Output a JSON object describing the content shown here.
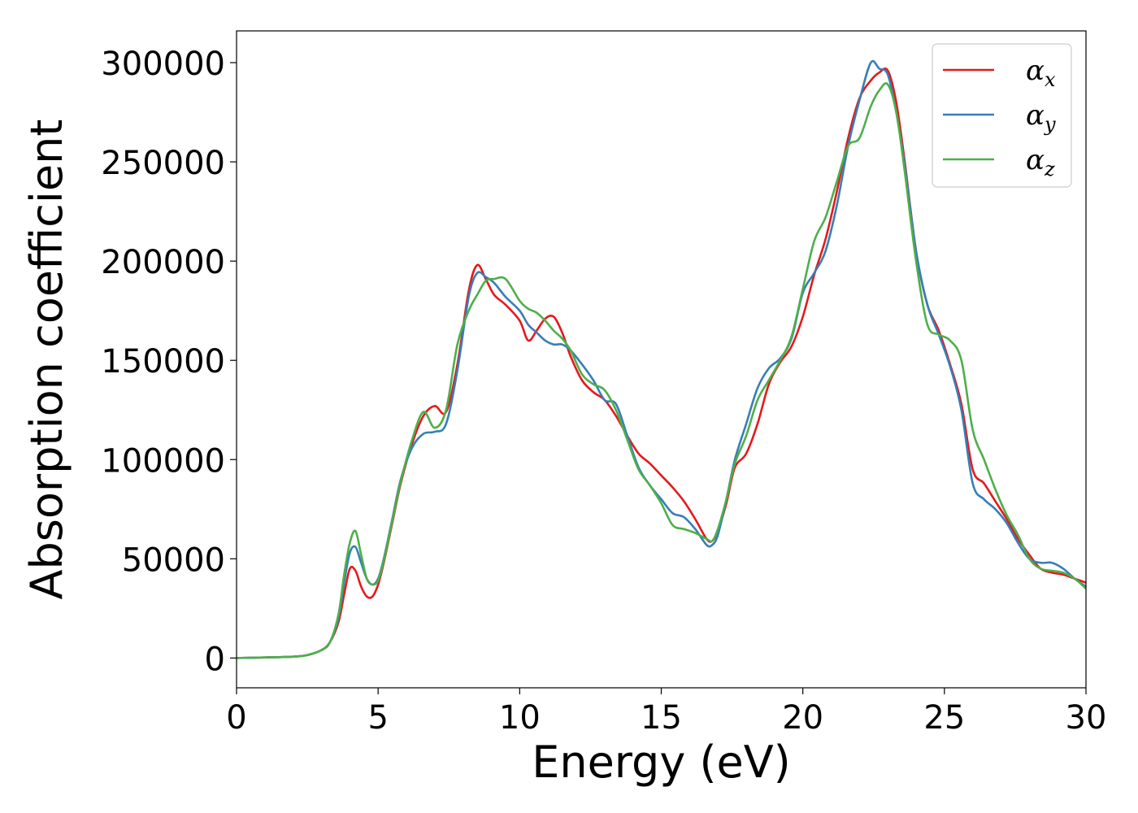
{
  "chart_data": {
    "type": "line",
    "title": "",
    "xlabel": "Energy (eV)",
    "ylabel": "Absorption coefficient",
    "xlim": [
      0,
      30
    ],
    "ylim": [
      -15000,
      316000
    ],
    "xticks": [
      0,
      5,
      10,
      15,
      20,
      25,
      30
    ],
    "yticks": [
      0,
      50000,
      100000,
      150000,
      200000,
      250000,
      300000
    ],
    "grid": false,
    "legend_position": "top-right",
    "series": [
      {
        "name": "α",
        "subscript": "x",
        "color": "#e41a1c",
        "x": [
          0,
          1,
          2,
          2.5,
          3,
          3.3,
          3.6,
          3.8,
          4.0,
          4.2,
          4.4,
          4.6,
          4.8,
          5.0,
          5.2,
          5.5,
          5.8,
          6.2,
          6.6,
          7.0,
          7.4,
          7.8,
          8.2,
          8.5,
          8.8,
          9.1,
          9.5,
          10.0,
          10.3,
          10.6,
          10.9,
          11.2,
          11.5,
          11.8,
          12.2,
          12.6,
          13.0,
          13.4,
          13.8,
          14.2,
          14.6,
          15.0,
          15.4,
          15.8,
          16.2,
          16.6,
          16.8,
          17.0,
          17.3,
          17.6,
          18.0,
          18.4,
          18.8,
          19.2,
          19.6,
          20.0,
          20.4,
          20.8,
          21.2,
          21.6,
          22.0,
          22.4,
          22.7,
          23.0,
          23.3,
          23.6,
          24.0,
          24.4,
          24.8,
          25.2,
          25.6,
          26.0,
          26.4,
          26.8,
          27.2,
          27.6,
          28.0,
          28.4,
          28.8,
          29.2,
          29.6,
          30.0
        ],
        "y": [
          0,
          300,
          700,
          1500,
          4000,
          8000,
          18000,
          32000,
          45000,
          44000,
          36000,
          31000,
          31000,
          37000,
          48000,
          68000,
          88000,
          108000,
          122000,
          127000,
          124000,
          148000,
          185000,
          198000,
          191000,
          183000,
          178000,
          170000,
          160000,
          165000,
          171000,
          172000,
          164000,
          152000,
          140000,
          134000,
          130000,
          122000,
          112000,
          103000,
          98000,
          92000,
          86000,
          79000,
          70000,
          60000,
          59000,
          64000,
          78000,
          96000,
          103000,
          118000,
          138000,
          149000,
          157000,
          172000,
          193000,
          211000,
          235000,
          262000,
          282000,
          291000,
          295000,
          296000,
          280000,
          250000,
          205000,
          178000,
          165000,
          148000,
          128000,
          95000,
          88000,
          79000,
          70000,
          60000,
          52000,
          45000,
          43000,
          42000,
          40000,
          38000
        ]
      },
      {
        "name": "α",
        "subscript": "y",
        "color": "#377eb8",
        "x": [
          0,
          1,
          2,
          2.5,
          3,
          3.3,
          3.6,
          3.8,
          4.0,
          4.2,
          4.4,
          4.6,
          4.8,
          5.0,
          5.2,
          5.5,
          5.8,
          6.2,
          6.6,
          7.0,
          7.4,
          7.8,
          8.2,
          8.5,
          8.8,
          9.1,
          9.5,
          10.0,
          10.3,
          10.6,
          10.9,
          11.2,
          11.5,
          11.8,
          12.2,
          12.6,
          13.0,
          13.4,
          13.8,
          14.2,
          14.6,
          15.0,
          15.4,
          15.8,
          16.2,
          16.6,
          16.8,
          17.0,
          17.3,
          17.6,
          18.0,
          18.4,
          18.8,
          19.2,
          19.6,
          20.0,
          20.4,
          20.8,
          21.2,
          21.6,
          22.0,
          22.4,
          22.7,
          23.0,
          23.3,
          23.6,
          24.0,
          24.4,
          24.8,
          25.2,
          25.6,
          26.0,
          26.4,
          26.8,
          27.2,
          27.6,
          28.0,
          28.4,
          28.8,
          29.2,
          29.6,
          30.0
        ],
        "y": [
          0,
          300,
          700,
          1500,
          4000,
          8000,
          20000,
          38000,
          53000,
          56000,
          48000,
          40000,
          37000,
          40000,
          50000,
          70000,
          90000,
          106000,
          113000,
          114000,
          118000,
          145000,
          182000,
          194000,
          192000,
          189000,
          182000,
          175000,
          168000,
          164000,
          160000,
          158000,
          158000,
          155000,
          148000,
          140000,
          130000,
          128000,
          112000,
          96000,
          87000,
          80000,
          73000,
          71000,
          65000,
          57000,
          57000,
          62000,
          80000,
          100000,
          118000,
          136000,
          146000,
          151000,
          161000,
          184000,
          194000,
          205000,
          228000,
          258000,
          281000,
          300000,
          297000,
          294000,
          275000,
          248000,
          205000,
          178000,
          163000,
          147000,
          125000,
          88000,
          80000,
          75000,
          68000,
          58000,
          50000,
          48000,
          48000,
          45000,
          40000,
          36000
        ]
      },
      {
        "name": "α",
        "subscript": "z",
        "color": "#4daf4a",
        "x": [
          0,
          1,
          2,
          2.5,
          3,
          3.3,
          3.6,
          3.8,
          4.0,
          4.2,
          4.4,
          4.6,
          4.8,
          5.0,
          5.2,
          5.5,
          5.8,
          6.2,
          6.6,
          7.0,
          7.4,
          7.8,
          8.2,
          8.5,
          8.8,
          9.1,
          9.5,
          10.0,
          10.3,
          10.6,
          10.9,
          11.2,
          11.5,
          11.8,
          12.2,
          12.6,
          13.0,
          13.4,
          13.8,
          14.2,
          14.6,
          15.0,
          15.4,
          15.8,
          16.2,
          16.6,
          16.8,
          17.0,
          17.3,
          17.6,
          18.0,
          18.4,
          18.8,
          19.2,
          19.6,
          20.0,
          20.4,
          20.8,
          21.2,
          21.6,
          22.0,
          22.4,
          22.7,
          23.0,
          23.3,
          23.6,
          24.0,
          24.4,
          24.8,
          25.2,
          25.6,
          26.0,
          26.4,
          26.8,
          27.2,
          27.6,
          28.0,
          28.4,
          28.8,
          29.2,
          29.6,
          30.0
        ],
        "y": [
          0,
          300,
          700,
          1500,
          4000,
          8000,
          22000,
          42000,
          58000,
          64000,
          52000,
          40000,
          37000,
          39000,
          49000,
          69000,
          89000,
          110000,
          124000,
          116000,
          125000,
          158000,
          175000,
          183000,
          190000,
          191000,
          191000,
          180000,
          176000,
          174000,
          170000,
          165000,
          161000,
          155000,
          143000,
          138000,
          135000,
          125000,
          110000,
          95000,
          87000,
          78000,
          67000,
          65000,
          63000,
          60000,
          59000,
          65000,
          80000,
          98000,
          112000,
          130000,
          140000,
          150000,
          162000,
          186000,
          210000,
          222000,
          240000,
          258000,
          262000,
          278000,
          286000,
          289000,
          275000,
          245000,
          200000,
          168000,
          163000,
          160000,
          150000,
          115000,
          100000,
          85000,
          72000,
          62000,
          50000,
          45000,
          44000,
          43000,
          40000,
          35000
        ]
      }
    ]
  }
}
